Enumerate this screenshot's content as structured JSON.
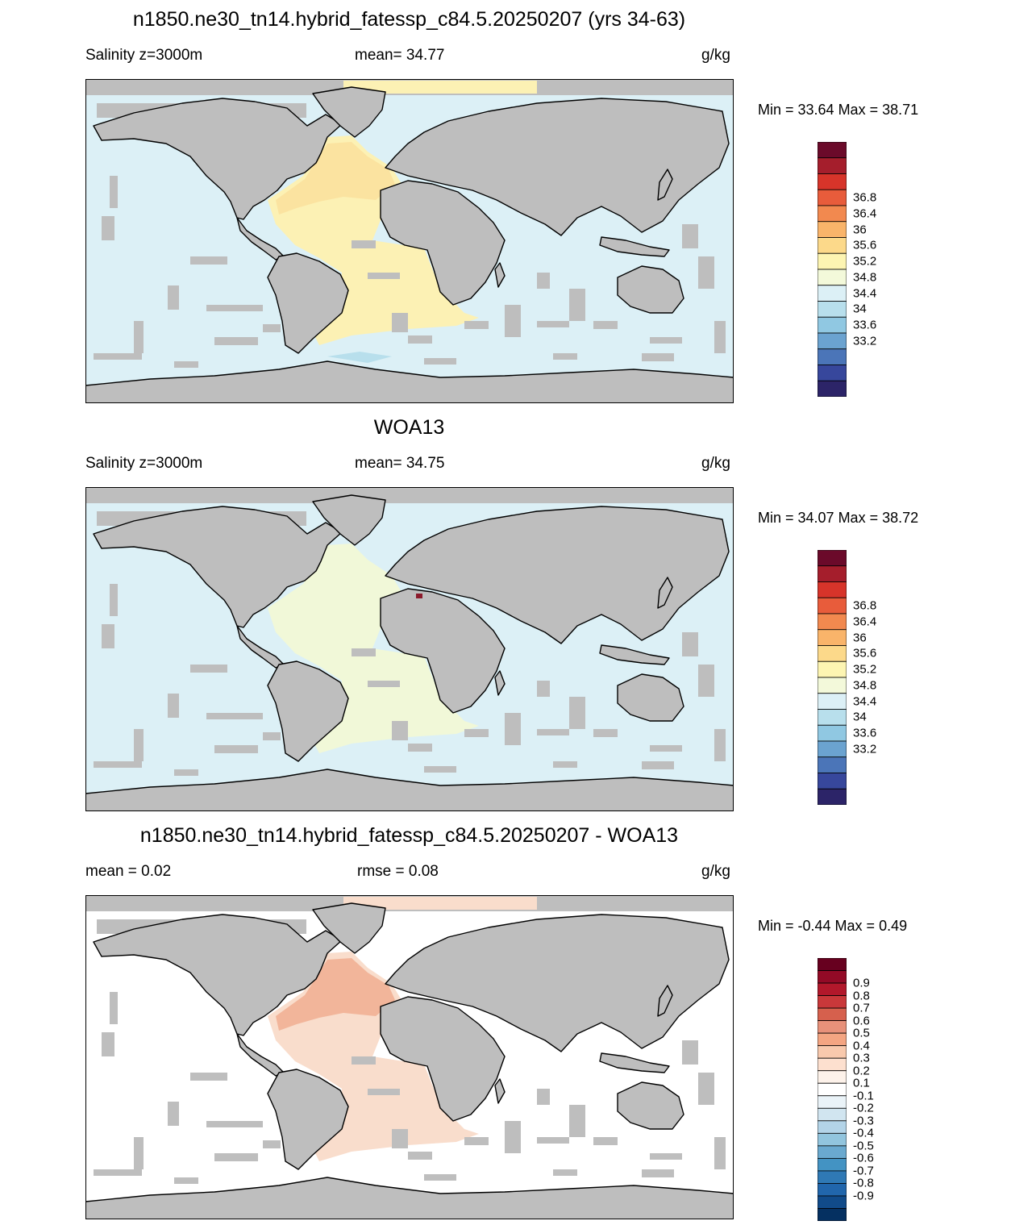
{
  "panels": [
    {
      "title": "n1850.ne30_tn14.hybrid_fatessp_c84.5.20250207 (yrs 34-63)",
      "left_label": "Salinity z=3000m",
      "mid_label": "mean=  34.77",
      "right_label": "g/kg",
      "minmax": "Min =  33.64 Max =  38.71",
      "colorbar": {
        "colors": [
          "#6b0a2a",
          "#a51e2c",
          "#d7342a",
          "#e85c3b",
          "#f2894f",
          "#f9b46a",
          "#fcd98a",
          "#fdf5b2",
          "#f3f9da",
          "#dcf0f6",
          "#b8dfec",
          "#90c8e2",
          "#6ba3d0",
          "#4b75b8",
          "#37479c",
          "#2c2468"
        ],
        "labels": [
          "36.8",
          "36.4",
          "36",
          "35.6",
          "35.2",
          "34.8",
          "34.4",
          "34",
          "33.6",
          "33.2"
        ]
      },
      "ocean_color": "#dcf0f6",
      "anomaly_color": "#fcf1b4",
      "anomaly2_color": "#fbe3a0"
    },
    {
      "title": "WOA13",
      "left_label": "Salinity z=3000m",
      "mid_label": "mean=  34.75",
      "right_label": "g/kg",
      "minmax": "Min =  34.07 Max =  38.72",
      "colorbar": {
        "colors": [
          "#6b0a2a",
          "#a51e2c",
          "#d7342a",
          "#e85c3b",
          "#f2894f",
          "#f9b46a",
          "#fcd98a",
          "#fdf5b2",
          "#f3f9da",
          "#dcf0f6",
          "#b8dfec",
          "#90c8e2",
          "#6ba3d0",
          "#4b75b8",
          "#37479c",
          "#2c2468"
        ],
        "labels": [
          "36.8",
          "36.4",
          "36",
          "35.6",
          "35.2",
          "34.8",
          "34.4",
          "34",
          "33.6",
          "33.2"
        ]
      },
      "ocean_color": "#dcf0f6",
      "anomaly_color": "#f1f8d8",
      "anomaly2_color": "#f1f8d8"
    },
    {
      "title": "n1850.ne30_tn14.hybrid_fatessp_c84.5.20250207 - WOA13",
      "left_label": "mean =   0.02",
      "mid_label": "rmse =   0.08",
      "right_label": "g/kg",
      "minmax": "Min =  -0.44 Max =   0.49",
      "colorbar": {
        "colors": [
          "#67001f",
          "#930a26",
          "#b2182b",
          "#c9383a",
          "#d6604d",
          "#e8917a",
          "#f4a582",
          "#f8c9ad",
          "#fde0cf",
          "#fdf2ea",
          "#ffffff",
          "#eaf3f8",
          "#d1e5f0",
          "#b3d4e8",
          "#92c5de",
          "#6aa9cf",
          "#4393c3",
          "#2f79b5",
          "#2166ac",
          "#114b8a",
          "#053061"
        ],
        "labels": [
          "0.9",
          "0.8",
          "0.7",
          "0.6",
          "0.5",
          "0.4",
          "0.3",
          "0.2",
          "0.1",
          "-0.1",
          "-0.2",
          "-0.3",
          "-0.4",
          "-0.5",
          "-0.6",
          "-0.7",
          "-0.8",
          "-0.9"
        ]
      },
      "ocean_color": "#ffffff",
      "anomaly_color": "#f9ddcc",
      "anomaly2_color": "#f2b59a"
    }
  ],
  "land_color": "#bebebe"
}
